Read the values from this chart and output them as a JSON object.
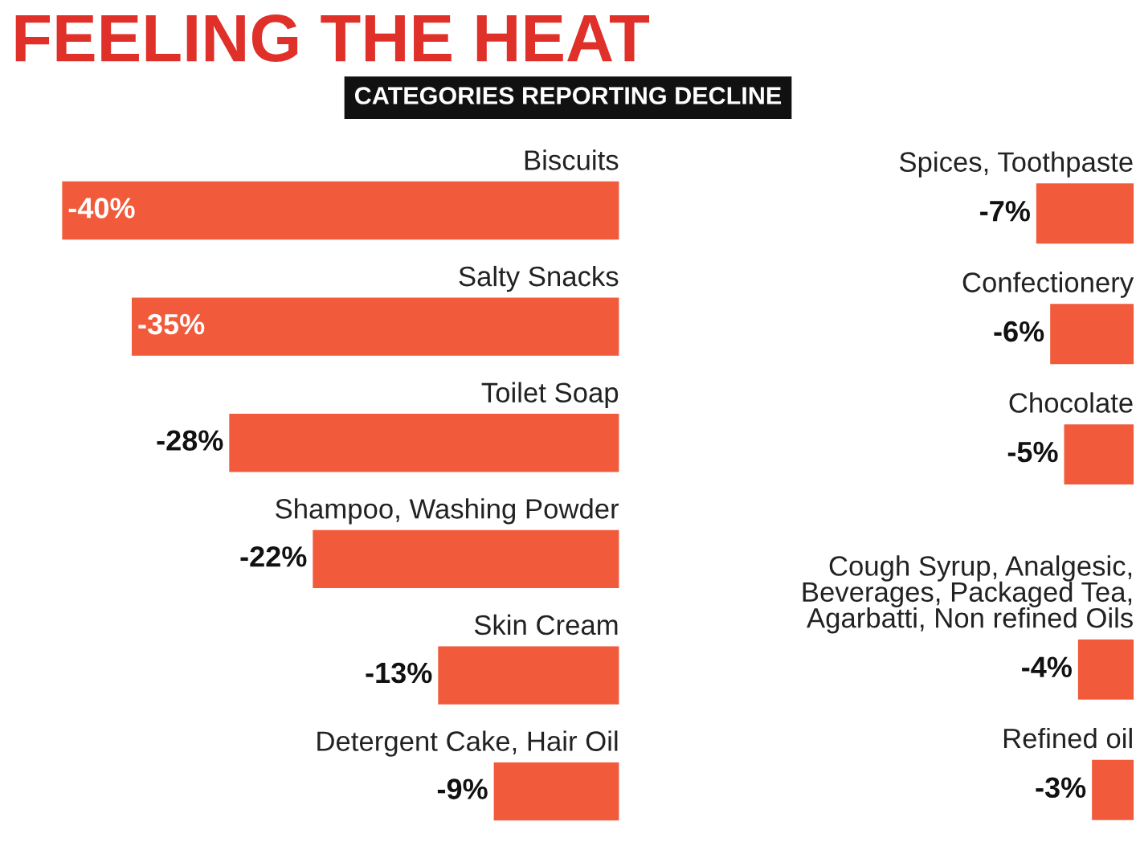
{
  "chart_data": [
    {
      "type": "bar",
      "orientation": "horizontal",
      "title": "FEELING THE HEAT",
      "subtitle": "CATEGORIES REPORTING DECLINE",
      "categories": [
        "Biscuits",
        "Salty Snacks",
        "Toilet Soap",
        "Shampoo, Washing Powder",
        "Skin Cream",
        "Detergent Cake, Hair Oil"
      ],
      "values": [
        -40,
        -35,
        -28,
        -22,
        -13,
        -9
      ],
      "value_labels": [
        "-40%",
        "-35%",
        "-28%",
        "-22%",
        "-13%",
        "-9%"
      ],
      "color": "#f15a3a"
    },
    {
      "type": "bar",
      "orientation": "horizontal",
      "categories": [
        "Spices, Toothpaste",
        "Confectionery",
        "Chocolate",
        "Cough Syrup, Analgesic,\nBeverages, Packaged Tea,\nAgarbatti, Non refined Oils",
        "Refined oil"
      ],
      "values": [
        -7,
        -6,
        -5,
        -4,
        -3
      ],
      "value_labels": [
        "-7%",
        "-6%",
        "-5%",
        "-4%",
        "-3%"
      ],
      "color": "#f15a3a"
    }
  ]
}
